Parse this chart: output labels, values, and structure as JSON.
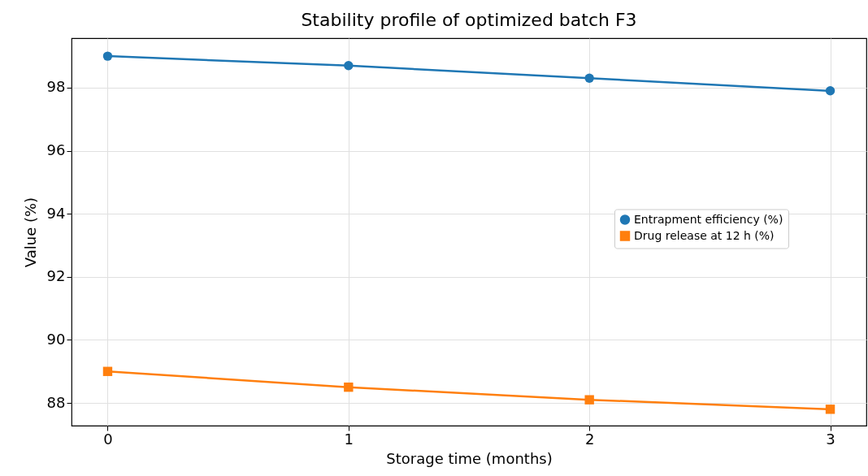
{
  "chart_data": {
    "type": "line",
    "title": "Stability profile of optimized batch F3",
    "xlabel": "Storage time (months)",
    "ylabel": "Value (%)",
    "x": [
      0,
      1,
      2,
      3
    ],
    "series": [
      {
        "name": "Entrapment efficiency (%)",
        "color": "#1f77b4",
        "marker": "circle",
        "values": [
          99.0,
          98.7,
          98.3,
          97.9
        ]
      },
      {
        "name": "Drug release at 12 h (%)",
        "color": "#ff7f0e",
        "marker": "square",
        "values": [
          89.0,
          88.5,
          88.1,
          87.8
        ]
      }
    ],
    "xlim": [
      -0.15,
      3.15
    ],
    "xticks": [
      0,
      1,
      2,
      3
    ],
    "ylim": [
      87.28,
      99.57
    ],
    "yticks": [
      88,
      90,
      92,
      94,
      96,
      98
    ],
    "grid": true,
    "legend": "right",
    "line_style": "solid"
  }
}
